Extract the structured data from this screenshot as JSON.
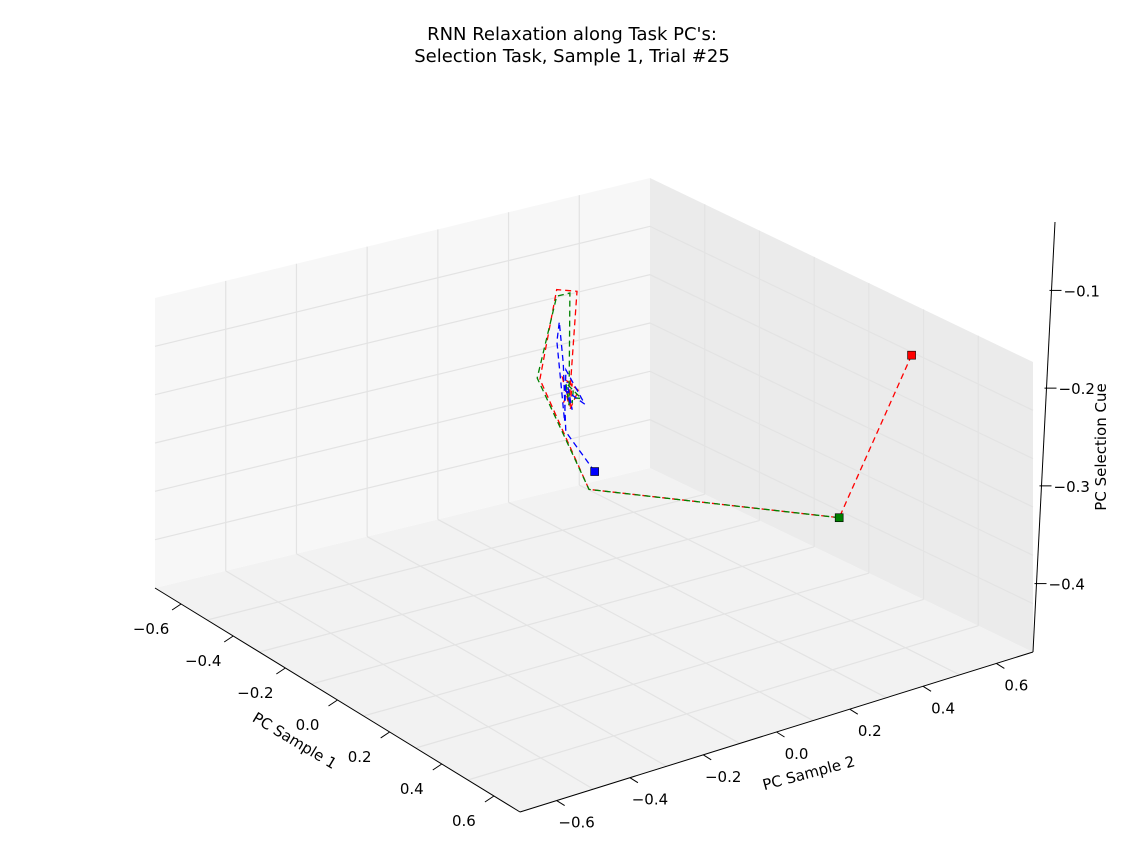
{
  "chart_data": {
    "type": "line",
    "projection": "3d",
    "title_line1": "RNN Relaxation along Task PC's:",
    "title_line2": "Selection Task, Sample 1, Trial #25",
    "xlabel": "PC Sample 1",
    "ylabel": "PC Sample 2",
    "zlabel": "PC Selection Cue",
    "x_ticks": [
      "−0.6",
      "−0.4",
      "−0.2",
      "0.0",
      "0.2",
      "0.4",
      "0.6"
    ],
    "y_ticks": [
      "−0.6",
      "−0.4",
      "−0.2",
      "0.0",
      "0.2",
      "0.4",
      "0.6"
    ],
    "z_ticks": [
      "−0.1",
      "−0.2",
      "−0.3",
      "−0.4"
    ],
    "grid": true,
    "line_style": "dashed",
    "start_marker": "square",
    "series": [
      {
        "color": "#ff0000",
        "points": [
          [
            -0.55,
            0.45,
            -0.05
          ],
          [
            -0.5,
            0.25,
            -0.33
          ],
          [
            -0.45,
            -0.6,
            -0.45
          ],
          [
            -0.35,
            -0.65,
            -0.28
          ],
          [
            -0.32,
            -0.55,
            -0.12
          ],
          [
            -0.3,
            -0.45,
            -0.1
          ],
          [
            -0.2,
            -0.35,
            -0.24
          ],
          [
            -0.22,
            -0.4,
            -0.21
          ],
          [
            -0.25,
            -0.38,
            -0.23
          ],
          [
            -0.21,
            -0.36,
            -0.25
          ],
          [
            -0.24,
            -0.39,
            -0.22
          ],
          [
            -0.2,
            -0.37,
            -0.24
          ]
        ]
      },
      {
        "color": "#008000",
        "points": [
          [
            -0.5,
            0.25,
            -0.33
          ],
          [
            -0.45,
            -0.6,
            -0.45
          ],
          [
            -0.35,
            -0.66,
            -0.28
          ],
          [
            -0.32,
            -0.55,
            -0.13
          ],
          [
            -0.28,
            -0.45,
            -0.1
          ],
          [
            -0.2,
            -0.35,
            -0.24
          ],
          [
            -0.23,
            -0.4,
            -0.22
          ],
          [
            -0.25,
            -0.37,
            -0.24
          ],
          [
            -0.21,
            -0.35,
            -0.23
          ],
          [
            -0.24,
            -0.39,
            -0.25
          ],
          [
            -0.22,
            -0.36,
            -0.22
          ]
        ]
      },
      {
        "color": "#0000ff",
        "points": [
          [
            -0.35,
            -0.45,
            -0.38
          ],
          [
            -0.4,
            -0.62,
            -0.36
          ],
          [
            -0.3,
            -0.5,
            -0.22
          ],
          [
            -0.25,
            -0.45,
            -0.14
          ],
          [
            -0.22,
            -0.42,
            -0.16
          ],
          [
            -0.18,
            -0.34,
            -0.26
          ],
          [
            -0.23,
            -0.4,
            -0.2
          ],
          [
            -0.26,
            -0.37,
            -0.25
          ],
          [
            -0.2,
            -0.36,
            -0.22
          ],
          [
            -0.24,
            -0.39,
            -0.26
          ],
          [
            -0.21,
            -0.37,
            -0.21
          ]
        ]
      }
    ]
  }
}
